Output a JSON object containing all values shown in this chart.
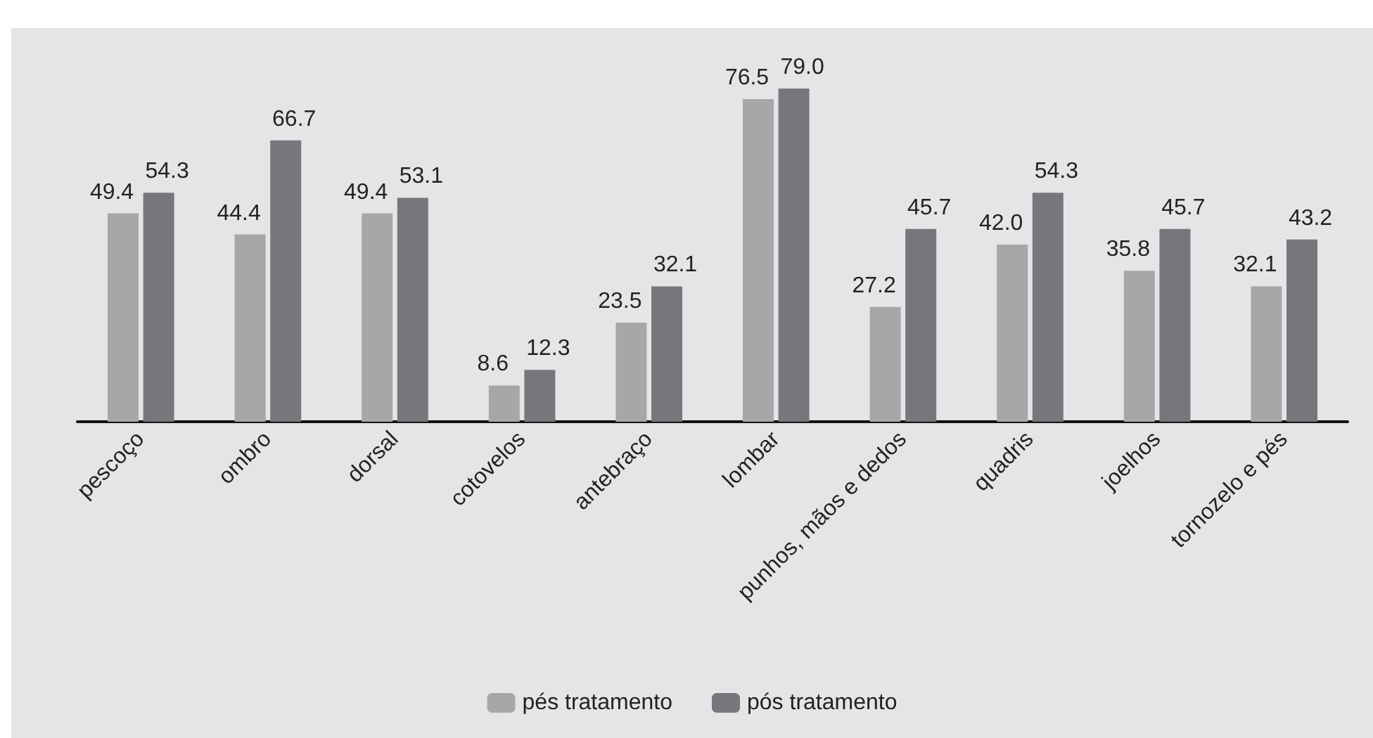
{
  "chart_data": {
    "type": "bar",
    "categories": [
      "pescoço",
      "ombro",
      "dorsal",
      "cotovelos",
      "antebraço",
      "lombar",
      "punhos, mãos e dedos",
      "quadris",
      "joelhos",
      "tornozelo e pés"
    ],
    "series": [
      {
        "name": "pés tratamento",
        "color": "#a7a7a9",
        "values": [
          49.4,
          44.4,
          49.4,
          8.6,
          23.5,
          76.5,
          27.2,
          42,
          35.8,
          32.1
        ],
        "value_labels": [
          "49.4",
          "44.4",
          "49.4",
          "8.6",
          "23.5",
          "76.5",
          "27.2",
          "42.0",
          "35.8",
          "32.1"
        ]
      },
      {
        "name": "pós tratamento",
        "color": "#77777b",
        "values": [
          54.3,
          66.7,
          53.1,
          12.3,
          32.1,
          79,
          45.7,
          54.3,
          45.7,
          43.2
        ],
        "value_labels": [
          "54.3",
          "66.7",
          "53.1",
          "12.3",
          "32.1",
          "79.0",
          "45.7",
          "54.3",
          "45.7",
          "43.2"
        ]
      }
    ],
    "grid": false,
    "legend": "bottom"
  }
}
